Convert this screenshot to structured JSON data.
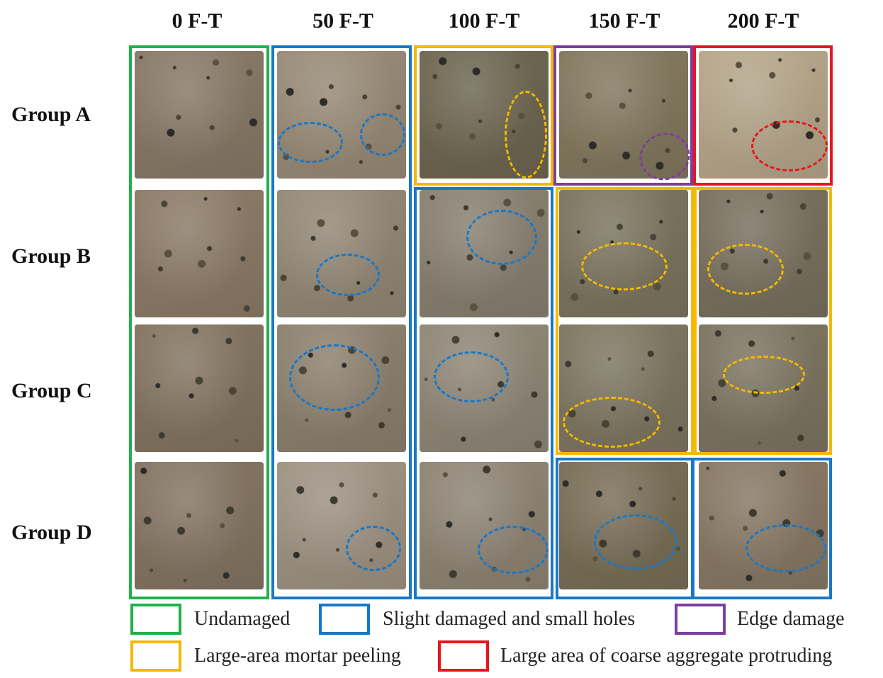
{
  "columns": [
    "0 F-T",
    "50 F-T",
    "100 F-T",
    "150 F-T",
    "200 F-T"
  ],
  "rows": [
    "Group A",
    "Group B",
    "Group C",
    "Group D"
  ],
  "colors": {
    "undamaged": "#1fb14a",
    "slight": "#1878c8",
    "edge": "#7b3fa0",
    "peeling": "#f5b800",
    "aggregate": "#e8161c"
  },
  "legend": {
    "undamaged": "Undamaged",
    "slight": "Slight damaged and small holes",
    "edge": "Edge damage",
    "peeling": "Large-area mortar peeling",
    "aggregate": "Large area of coarse aggregate protruding"
  }
}
